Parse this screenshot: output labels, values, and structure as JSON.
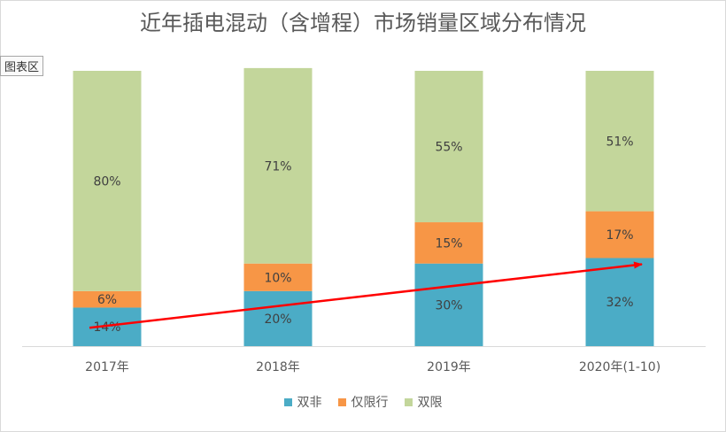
{
  "chart_data": {
    "type": "bar",
    "stacked": true,
    "title": "近年插电混动（含增程）市场销量区域分布情况",
    "area_tag": "图表区",
    "categories": [
      "2017年",
      "2018年",
      "2019年",
      "2020年(1-10)"
    ],
    "series": [
      {
        "name": "双非",
        "color": "#4bacc6",
        "values": [
          14,
          20,
          30,
          32
        ],
        "labels": [
          "14%",
          "20%",
          "30%",
          "32%"
        ]
      },
      {
        "name": "仅限行",
        "color": "#f79646",
        "values": [
          6,
          10,
          15,
          17
        ],
        "labels": [
          "6%",
          "10%",
          "15%",
          "17%"
        ]
      },
      {
        "name": "双限",
        "color": "#c3d69b",
        "values": [
          80,
          71,
          55,
          51
        ],
        "labels": [
          "80%",
          "71%",
          "55%",
          "51%"
        ]
      }
    ],
    "ylim": [
      0,
      100
    ],
    "grid": false,
    "legend_position": "bottom",
    "trend_arrow_color": "#ff0000"
  }
}
